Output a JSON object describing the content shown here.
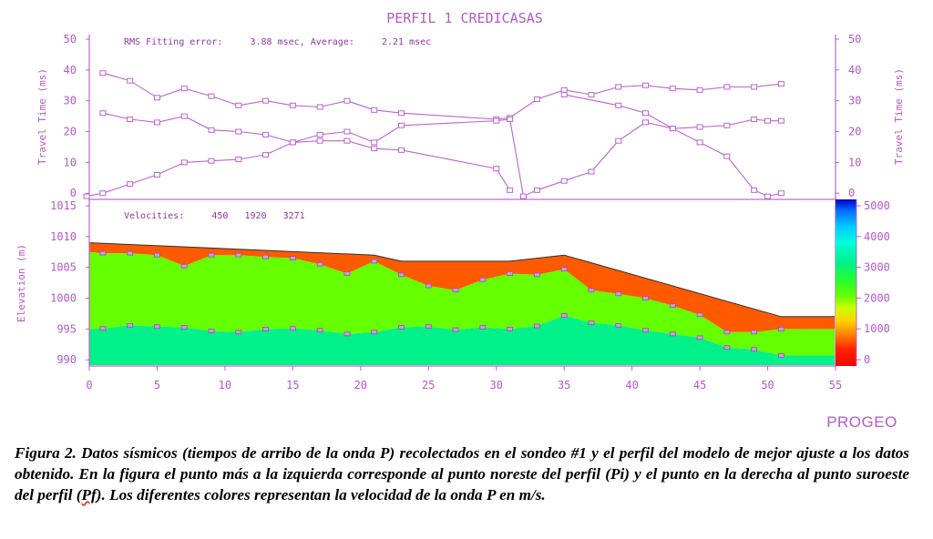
{
  "colors": {
    "purple": "#b866cc",
    "text_purple": "#b05cc4",
    "layer1": "#ff5a00",
    "layer2": "#66ff00",
    "layer3": "#00f08a",
    "boundary": "#404040"
  },
  "chart_data": [
    {
      "type": "line",
      "title": "PERFIL 1 CREDICASAS",
      "ylabel": "Travel Time (ms)",
      "ylabel_right": "Travel Time (ms)",
      "ylim": [
        -2,
        50
      ],
      "yticks": [
        0,
        10,
        20,
        30,
        40,
        50
      ],
      "xlim": [
        0,
        55
      ],
      "annotation": "RMS Fitting error:     3.88 msec, Average:     2.21 msec",
      "grid": false,
      "series": [
        {
          "x": [
            1,
            3,
            5,
            7,
            9,
            11,
            13,
            15,
            17,
            19,
            21,
            23,
            30,
            31,
            33,
            35,
            37,
            39,
            41,
            43,
            45,
            47,
            49,
            51
          ],
          "y": [
            39,
            36.5,
            31,
            34,
            31.5,
            28.5,
            30,
            28.5,
            28,
            30,
            27,
            26,
            24,
            24.5,
            30.5,
            33.5,
            32,
            34.5,
            35,
            34,
            33.5,
            34.5,
            34.5,
            35.5
          ]
        },
        {
          "x": [
            1,
            3,
            5,
            7,
            9,
            11,
            13,
            15,
            17,
            19,
            21,
            23,
            30,
            31
          ],
          "y": [
            26,
            24,
            23,
            25,
            20.5,
            20,
            19,
            16.5,
            17,
            17,
            14.5,
            14,
            8,
            1
          ]
        },
        {
          "x": [
            -0.2,
            1,
            3,
            5,
            7,
            9,
            11,
            13,
            15,
            17,
            19,
            21,
            23,
            30,
            31,
            32,
            33,
            35,
            37,
            39,
            41,
            43,
            45,
            47,
            49,
            50,
            51
          ],
          "y": [
            -1,
            0,
            3,
            6,
            10,
            10.5,
            11,
            12.5,
            16.5,
            19,
            20,
            16.5,
            22,
            23.5,
            24,
            -1,
            1,
            4,
            7,
            17,
            23,
            21,
            21.5,
            22,
            24,
            23.5,
            23.5
          ]
        },
        {
          "x": [
            35,
            39,
            41,
            43,
            45,
            47,
            49,
            50,
            51
          ],
          "y": [
            32,
            28.5,
            26,
            21,
            16.5,
            12,
            1,
            -1,
            0
          ]
        }
      ]
    },
    {
      "type": "area",
      "ylabel": "Elevation (m)",
      "ylim": [
        989,
        1015
      ],
      "yticks": [
        990,
        995,
        1000,
        1005,
        1010,
        1015
      ],
      "xticks": [
        0,
        5,
        10,
        15,
        20,
        25,
        30,
        35,
        40,
        45,
        50,
        55
      ],
      "xlim": [
        0,
        55
      ],
      "annotation": "Velocities:     450   1920   3271",
      "grid": false,
      "velocities": [
        450,
        1920,
        3271
      ],
      "surface": {
        "x": [
          0,
          21,
          23,
          31,
          35,
          51,
          55
        ],
        "y": [
          1009,
          1007,
          1006,
          1006,
          1007,
          997,
          997
        ]
      },
      "interface1": {
        "x": [
          0,
          1,
          3,
          5,
          7,
          9,
          11,
          13,
          15,
          17,
          19,
          21,
          23,
          25,
          27,
          29,
          31,
          33,
          35,
          37,
          39,
          41,
          43,
          45,
          47,
          49,
          51,
          53,
          55
        ],
        "y": [
          1007.5,
          1007.3,
          1007.3,
          1007,
          1005.2,
          1007,
          1007,
          1006.7,
          1006.5,
          1005.5,
          1004,
          1006,
          1003.8,
          1002,
          1001.3,
          1003,
          1004,
          1003.8,
          1004.7,
          1001.3,
          1000.7,
          1000,
          998.8,
          997.3,
          994.5,
          994.5,
          995,
          995,
          995
        ]
      },
      "interface2": {
        "x": [
          0,
          1,
          3,
          5,
          7,
          9,
          11,
          13,
          15,
          17,
          19,
          21,
          23,
          25,
          27,
          29,
          31,
          33,
          35,
          37,
          39,
          41,
          43,
          45,
          47,
          49,
          51,
          53,
          55
        ],
        "y": [
          995,
          995.1,
          995.6,
          995.4,
          995.3,
          994.7,
          994.5,
          995,
          995.1,
          994.8,
          994.2,
          994.5,
          995.3,
          995.4,
          994.9,
          995.3,
          995,
          995.5,
          997.2,
          996,
          995.6,
          994.8,
          994.2,
          993.6,
          992,
          991.7,
          990.7,
          990.7,
          990.7
        ]
      }
    }
  ],
  "colorbar": {
    "ticks": [
      0,
      1000,
      2000,
      3000,
      4000,
      5000
    ],
    "range": [
      0,
      5000
    ]
  },
  "brand": "PROGEO",
  "caption": {
    "part1": "Figura 2. Datos sísmicos (tiempos de arribo de la onda P) recolectados en el sondeo #1 y el perfil del modelo de mejor ajuste a los datos obtenido.  En la figura el punto más a la izquierda corresponde al punto noreste del perfil (Pi) y el punto en la derecha al punto suroeste del perfil (",
    "spell": "Pf",
    "part2": "). Los diferentes colores representan la velocidad de la onda P en m/s."
  }
}
